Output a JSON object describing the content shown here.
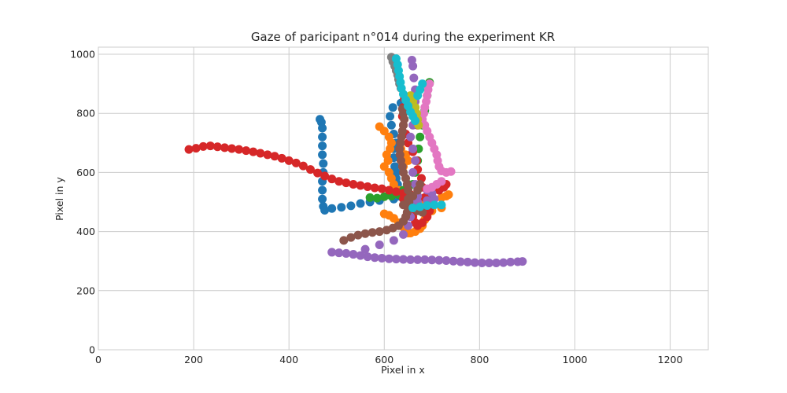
{
  "chart_data": {
    "type": "scatter",
    "title": "Gaze of paricipant n°014 during the experiment KR",
    "xlabel": "Pixel in x",
    "ylabel": "Pixel in y",
    "xlim": [
      0,
      1280
    ],
    "ylim": [
      0,
      1024
    ],
    "xticks": [
      0,
      200,
      400,
      600,
      800,
      1000,
      1200
    ],
    "yticks": [
      0,
      200,
      400,
      600,
      800,
      1000
    ],
    "grid": true,
    "series": [
      {
        "color": "#1f77b4",
        "points": [
          [
            465,
            780
          ],
          [
            468,
            770
          ],
          [
            470,
            750
          ],
          [
            470,
            720
          ],
          [
            470,
            690
          ],
          [
            470,
            660
          ],
          [
            472,
            630
          ],
          [
            472,
            600
          ],
          [
            470,
            570
          ],
          [
            470,
            540
          ],
          [
            470,
            510
          ],
          [
            472,
            485
          ],
          [
            475,
            472
          ],
          [
            490,
            478
          ],
          [
            510,
            482
          ],
          [
            530,
            487
          ],
          [
            550,
            495
          ],
          [
            570,
            500
          ],
          [
            590,
            505
          ],
          [
            620,
            510
          ],
          [
            630,
            520
          ],
          [
            630,
            540
          ],
          [
            628,
            560
          ],
          [
            625,
            580
          ],
          [
            625,
            600
          ],
          [
            622,
            620
          ],
          [
            620,
            650
          ],
          [
            620,
            680
          ],
          [
            625,
            700
          ],
          [
            620,
            730
          ],
          [
            615,
            760
          ],
          [
            612,
            790
          ],
          [
            618,
            820
          ],
          [
            635,
            835
          ]
        ]
      },
      {
        "color": "#ff7f0e",
        "points": [
          [
            590,
            755
          ],
          [
            600,
            740
          ],
          [
            610,
            720
          ],
          [
            615,
            700
          ],
          [
            612,
            680
          ],
          [
            605,
            660
          ],
          [
            608,
            640
          ],
          [
            600,
            620
          ],
          [
            610,
            600
          ],
          [
            615,
            580
          ],
          [
            620,
            560
          ],
          [
            630,
            540
          ],
          [
            640,
            520
          ],
          [
            660,
            505
          ],
          [
            680,
            505
          ],
          [
            700,
            510
          ],
          [
            720,
            515
          ],
          [
            730,
            520
          ],
          [
            735,
            525
          ],
          [
            720,
            480
          ],
          [
            700,
            470
          ],
          [
            690,
            455
          ],
          [
            685,
            440
          ],
          [
            680,
            420
          ],
          [
            675,
            410
          ],
          [
            665,
            400
          ],
          [
            655,
            395
          ],
          [
            650,
            395
          ],
          [
            645,
            400
          ],
          [
            640,
            415
          ],
          [
            630,
            430
          ],
          [
            620,
            445
          ],
          [
            610,
            455
          ],
          [
            600,
            460
          ],
          [
            640,
            620
          ],
          [
            650,
            640
          ],
          [
            645,
            660
          ],
          [
            635,
            680
          ]
        ]
      },
      {
        "color": "#2ca02c",
        "points": [
          [
            570,
            515
          ],
          [
            585,
            513
          ],
          [
            600,
            518
          ],
          [
            615,
            520
          ],
          [
            630,
            525
          ],
          [
            650,
            520
          ],
          [
            660,
            560
          ],
          [
            665,
            600
          ],
          [
            670,
            640
          ],
          [
            672,
            680
          ],
          [
            675,
            720
          ],
          [
            680,
            760
          ],
          [
            685,
            810
          ],
          [
            690,
            860
          ],
          [
            695,
            905
          ],
          [
            650,
            560
          ],
          [
            640,
            540
          ]
        ]
      },
      {
        "color": "#d62728",
        "points": [
          [
            190,
            678
          ],
          [
            205,
            682
          ],
          [
            220,
            688
          ],
          [
            235,
            690
          ],
          [
            250,
            687
          ],
          [
            265,
            684
          ],
          [
            280,
            681
          ],
          [
            295,
            678
          ],
          [
            310,
            674
          ],
          [
            325,
            670
          ],
          [
            340,
            665
          ],
          [
            355,
            660
          ],
          [
            370,
            655
          ],
          [
            385,
            648
          ],
          [
            400,
            640
          ],
          [
            415,
            632
          ],
          [
            430,
            622
          ],
          [
            445,
            610
          ],
          [
            460,
            598
          ],
          [
            475,
            588
          ],
          [
            490,
            578
          ],
          [
            505,
            570
          ],
          [
            520,
            565
          ],
          [
            535,
            560
          ],
          [
            550,
            556
          ],
          [
            565,
            552
          ],
          [
            580,
            548
          ],
          [
            595,
            545
          ],
          [
            610,
            540
          ],
          [
            625,
            535
          ],
          [
            640,
            530
          ],
          [
            655,
            525
          ],
          [
            670,
            520
          ],
          [
            685,
            515
          ],
          [
            700,
            510
          ],
          [
            715,
            540
          ],
          [
            725,
            550
          ],
          [
            730,
            560
          ],
          [
            640,
            510
          ],
          [
            650,
            490
          ],
          [
            655,
            470
          ],
          [
            660,
            450
          ],
          [
            665,
            430
          ],
          [
            670,
            420
          ],
          [
            680,
            430
          ],
          [
            690,
            450
          ],
          [
            695,
            470
          ],
          [
            700,
            490
          ],
          [
            690,
            520
          ],
          [
            680,
            550
          ],
          [
            678,
            580
          ],
          [
            670,
            610
          ],
          [
            668,
            640
          ],
          [
            660,
            670
          ],
          [
            650,
            700
          ],
          [
            645,
            730
          ],
          [
            640,
            760
          ],
          [
            638,
            790
          ],
          [
            640,
            820
          ],
          [
            642,
            850
          ],
          [
            650,
            830
          ],
          [
            660,
            800
          ],
          [
            665,
            780
          ],
          [
            670,
            760
          ]
        ]
      },
      {
        "color": "#9467bd",
        "points": [
          [
            490,
            330
          ],
          [
            505,
            328
          ],
          [
            520,
            326
          ],
          [
            535,
            323
          ],
          [
            550,
            319
          ],
          [
            565,
            315
          ],
          [
            580,
            312
          ],
          [
            595,
            310
          ],
          [
            610,
            308
          ],
          [
            625,
            307
          ],
          [
            640,
            306
          ],
          [
            655,
            305
          ],
          [
            670,
            305
          ],
          [
            685,
            305
          ],
          [
            700,
            304
          ],
          [
            715,
            303
          ],
          [
            730,
            302
          ],
          [
            745,
            300
          ],
          [
            760,
            298
          ],
          [
            775,
            297
          ],
          [
            790,
            295
          ],
          [
            805,
            294
          ],
          [
            820,
            294
          ],
          [
            835,
            294
          ],
          [
            850,
            295
          ],
          [
            865,
            297
          ],
          [
            880,
            298
          ],
          [
            890,
            299
          ],
          [
            560,
            340
          ],
          [
            590,
            355
          ],
          [
            620,
            370
          ],
          [
            640,
            390
          ],
          [
            650,
            420
          ],
          [
            655,
            450
          ],
          [
            660,
            480
          ],
          [
            665,
            500
          ],
          [
            670,
            520
          ],
          [
            665,
            560
          ],
          [
            660,
            600
          ],
          [
            665,
            640
          ],
          [
            660,
            680
          ],
          [
            655,
            720
          ],
          [
            660,
            760
          ],
          [
            662,
            800
          ],
          [
            665,
            840
          ],
          [
            665,
            880
          ],
          [
            662,
            920
          ],
          [
            660,
            960
          ],
          [
            658,
            980
          ],
          [
            670,
            500
          ],
          [
            690,
            505
          ],
          [
            705,
            510
          ],
          [
            700,
            530
          ],
          [
            690,
            540
          ]
        ]
      },
      {
        "color": "#8c564b",
        "points": [
          [
            515,
            370
          ],
          [
            530,
            380
          ],
          [
            545,
            388
          ],
          [
            560,
            393
          ],
          [
            575,
            397
          ],
          [
            590,
            400
          ],
          [
            605,
            405
          ],
          [
            618,
            412
          ],
          [
            630,
            420
          ],
          [
            640,
            435
          ],
          [
            645,
            450
          ],
          [
            648,
            465
          ],
          [
            650,
            480
          ],
          [
            652,
            500
          ],
          [
            655,
            520
          ],
          [
            650,
            540
          ],
          [
            648,
            560
          ],
          [
            645,
            580
          ],
          [
            640,
            600
          ],
          [
            638,
            620
          ],
          [
            635,
            640
          ],
          [
            633,
            660
          ],
          [
            632,
            680
          ],
          [
            634,
            700
          ],
          [
            636,
            720
          ],
          [
            638,
            740
          ],
          [
            640,
            760
          ],
          [
            642,
            780
          ],
          [
            640,
            800
          ],
          [
            638,
            815
          ],
          [
            660,
            480
          ],
          [
            670,
            470
          ],
          [
            680,
            465
          ],
          [
            660,
            520
          ],
          [
            670,
            540
          ],
          [
            675,
            560
          ],
          [
            650,
            510
          ],
          [
            640,
            490
          ]
        ]
      },
      {
        "color": "#e377c2",
        "points": [
          [
            695,
            900
          ],
          [
            692,
            880
          ],
          [
            690,
            860
          ],
          [
            688,
            840
          ],
          [
            685,
            820
          ],
          [
            683,
            800
          ],
          [
            680,
            780
          ],
          [
            685,
            760
          ],
          [
            690,
            740
          ],
          [
            695,
            720
          ],
          [
            700,
            700
          ],
          [
            705,
            680
          ],
          [
            710,
            660
          ],
          [
            712,
            640
          ],
          [
            715,
            620
          ],
          [
            720,
            605
          ],
          [
            730,
            600
          ],
          [
            740,
            603
          ],
          [
            720,
            570
          ],
          [
            710,
            560
          ],
          [
            700,
            550
          ],
          [
            690,
            545
          ]
        ]
      },
      {
        "color": "#7f7f7f",
        "points": [
          [
            615,
            990
          ],
          [
            618,
            975
          ],
          [
            622,
            960
          ],
          [
            625,
            945
          ],
          [
            628,
            930
          ],
          [
            630,
            915
          ],
          [
            632,
            900
          ],
          [
            635,
            885
          ]
        ]
      },
      {
        "color": "#bcbd22",
        "points": [
          [
            655,
            860
          ],
          [
            660,
            840
          ],
          [
            665,
            820
          ],
          [
            668,
            800
          ],
          [
            670,
            780
          ],
          [
            672,
            760
          ]
        ]
      },
      {
        "color": "#17becf",
        "points": [
          [
            625,
            985
          ],
          [
            628,
            965
          ],
          [
            630,
            945
          ],
          [
            632,
            925
          ],
          [
            634,
            905
          ],
          [
            636,
            885
          ],
          [
            640,
            865
          ],
          [
            645,
            845
          ],
          [
            650,
            825
          ],
          [
            655,
            805
          ],
          [
            660,
            790
          ],
          [
            665,
            775
          ],
          [
            670,
            860
          ],
          [
            675,
            880
          ],
          [
            680,
            900
          ],
          [
            660,
            480
          ],
          [
            675,
            484
          ],
          [
            690,
            488
          ],
          [
            705,
            490
          ],
          [
            720,
            490
          ]
        ]
      }
    ]
  }
}
